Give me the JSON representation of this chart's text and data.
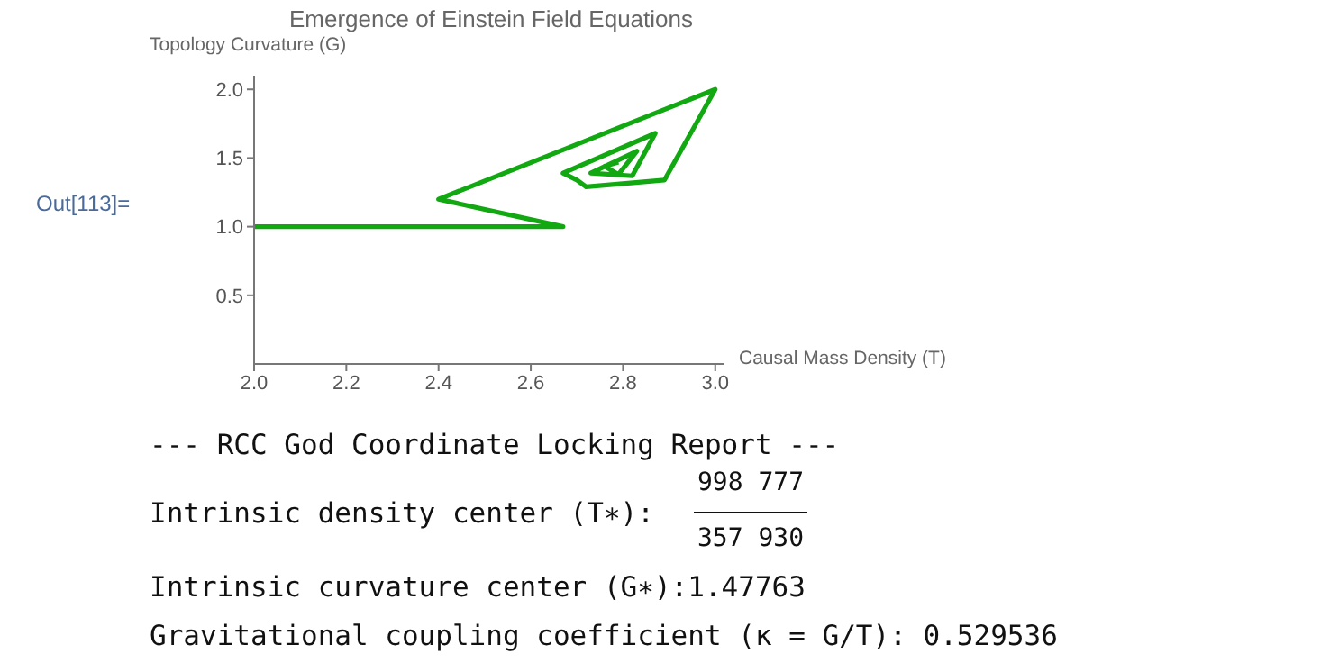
{
  "chart_data": {
    "type": "line",
    "title": "Emergence of Einstein Field Equations",
    "xlabel": "Causal Mass Density (T)",
    "ylabel": "Topology Curvature (G)",
    "x": [
      2.0,
      2.67,
      2.4,
      3.0,
      2.89,
      2.72,
      2.7,
      2.67,
      2.87,
      2.82,
      2.73,
      2.83,
      2.79,
      2.76,
      2.79
    ],
    "series": [
      {
        "color": "#11a811",
        "values": [
          1.0,
          1.0,
          1.2,
          2.0,
          1.34,
          1.29,
          1.34,
          1.39,
          1.68,
          1.37,
          1.39,
          1.55,
          1.38,
          1.44,
          1.47
        ]
      }
    ],
    "xlim": [
      2,
      3.02
    ],
    "ylim": [
      0,
      2.1
    ],
    "xticks": [
      {
        "value": 2,
        "label": "2.0"
      },
      {
        "value": 2.2,
        "label": "2.2"
      },
      {
        "value": 2.4,
        "label": "2.4"
      },
      {
        "value": 2.6,
        "label": "2.6"
      },
      {
        "value": 2.8,
        "label": "2.8"
      },
      {
        "value": 3,
        "label": "3.0"
      }
    ],
    "yticks": [
      {
        "value": 0.5,
        "label": "0.5"
      },
      {
        "value": 1,
        "label": "1.0"
      },
      {
        "value": 1.5,
        "label": "1.5"
      },
      {
        "value": 2,
        "label": "2.0"
      }
    ],
    "grid": false,
    "marker": "none",
    "line_style": "solid",
    "annotations": [
      "Out[113]=",
      "--- RCC God Coordinate Locking Report ---",
      "Intrinsic density center (T∗):",
      "998 777",
      "357 930",
      "Intrinsic curvature center (G∗):1.47763",
      "Gravitational coupling coefficient (κ = G/T): 0.529536"
    ]
  }
}
